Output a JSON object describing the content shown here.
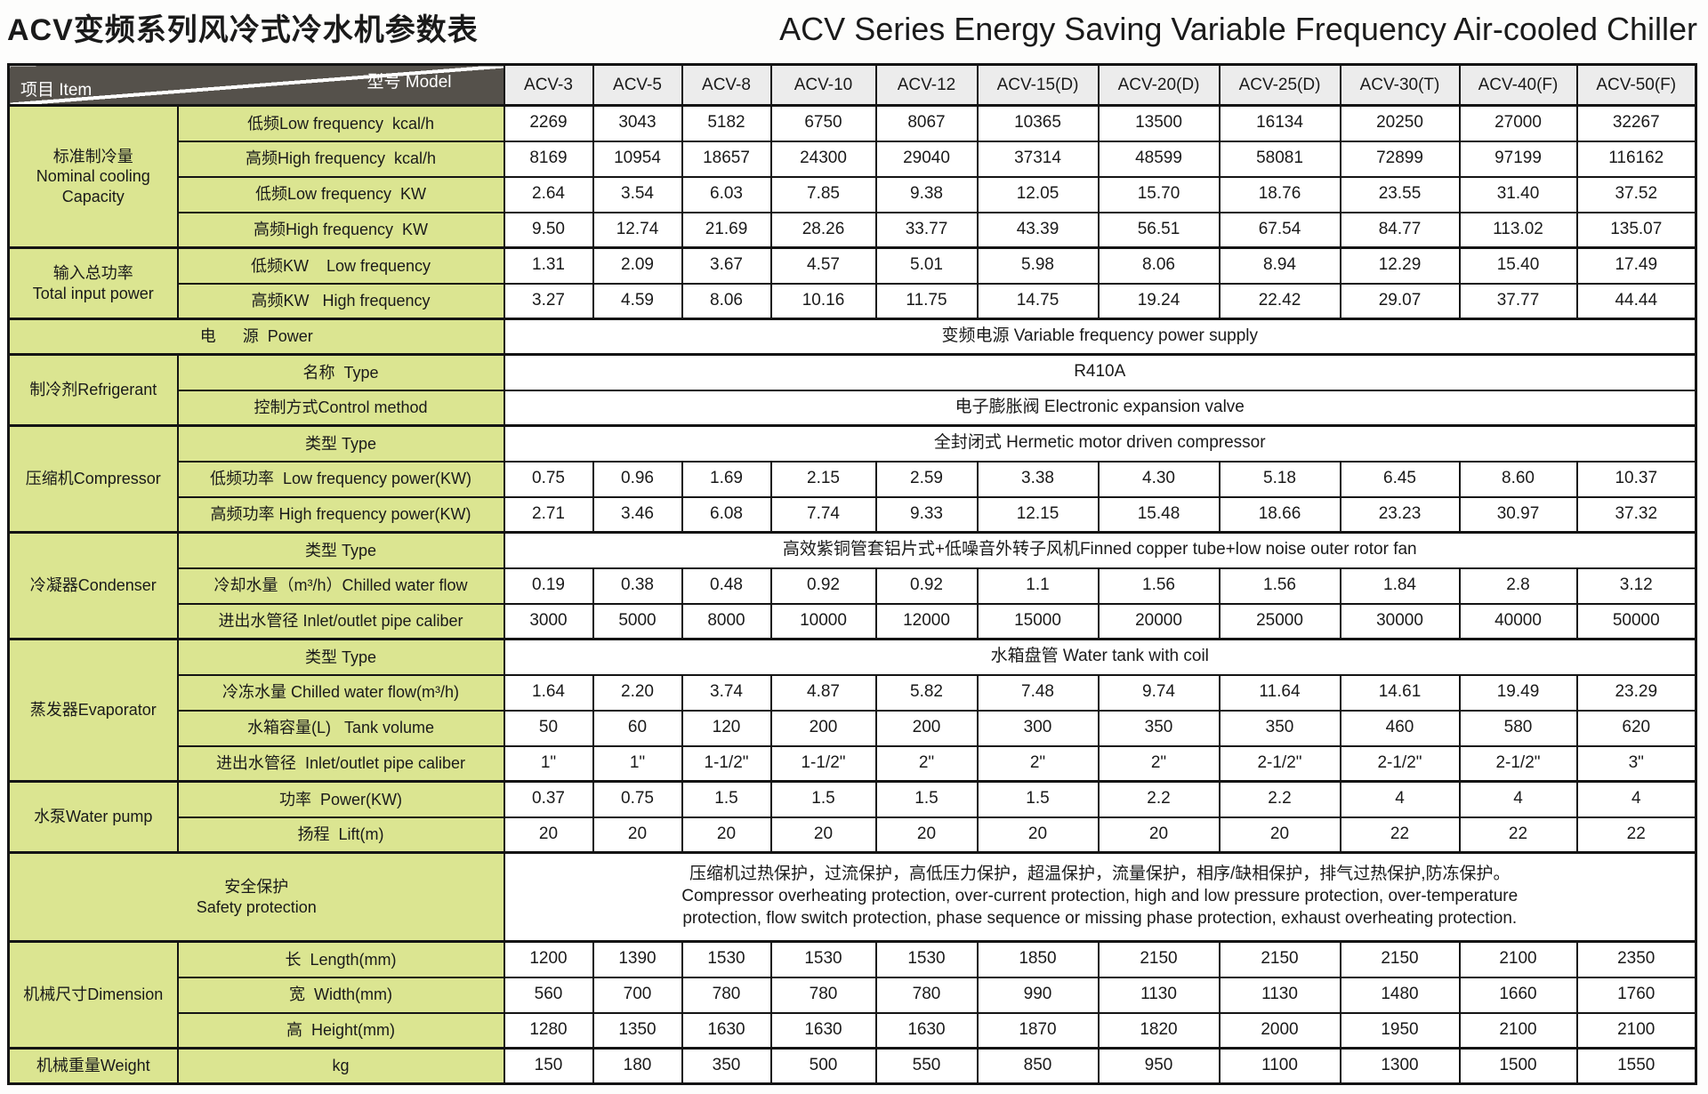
{
  "title": {
    "zh": "ACV变频系列风冷式冷水机参数表",
    "en": "ACV Series Energy Saving Variable Frequency Air-cooled Chiller"
  },
  "colors": {
    "label_bg": "#dbe591",
    "corner_bg": "#55514b",
    "model_header_bg": "#ececec",
    "border": "#141414"
  },
  "table": {
    "corner": {
      "model": "型号  Model",
      "item": "项目  Item"
    },
    "models": [
      "ACV-3",
      "ACV-5",
      "ACV-8",
      "ACV-10",
      "ACV-12",
      "ACV-15(D)",
      "ACV-20(D)",
      "ACV-25(D)",
      "ACV-30(T)",
      "ACV-40(F)",
      "ACV-50(F)"
    ],
    "rows": [
      {
        "group": "标准制冷量\nNominal cooling\nCapacity",
        "group_rowspan": 4,
        "label": "低频Low frequency  kcal/h",
        "values": [
          "2269",
          "3043",
          "5182",
          "6750",
          "8067",
          "10365",
          "13500",
          "16134",
          "20250",
          "27000",
          "32267"
        ]
      },
      {
        "label": "高频High frequency  kcal/h",
        "values": [
          "8169",
          "10954",
          "18657",
          "24300",
          "29040",
          "37314",
          "48599",
          "58081",
          "72899",
          "97199",
          "116162"
        ]
      },
      {
        "label": "低频Low frequency  KW",
        "values": [
          "2.64",
          "3.54",
          "6.03",
          "7.85",
          "9.38",
          "12.05",
          "15.70",
          "18.76",
          "23.55",
          "31.40",
          "37.52"
        ]
      },
      {
        "label": "高频High frequency  KW",
        "values": [
          "9.50",
          "12.74",
          "21.69",
          "28.26",
          "33.77",
          "43.39",
          "56.51",
          "67.54",
          "84.77",
          "113.02",
          "135.07"
        ]
      },
      {
        "section_start": true,
        "group": "输入总功率\nTotal input power",
        "group_rowspan": 2,
        "label": "低频KW    Low frequency",
        "values": [
          "1.31",
          "2.09",
          "3.67",
          "4.57",
          "5.01",
          "5.98",
          "8.06",
          "8.94",
          "12.29",
          "15.40",
          "17.49"
        ]
      },
      {
        "label": "高频KW   High frequency",
        "values": [
          "3.27",
          "4.59",
          "8.06",
          "10.16",
          "11.75",
          "14.75",
          "19.24",
          "22.42",
          "29.07",
          "37.77",
          "44.44"
        ]
      },
      {
        "section_start": true,
        "wide_label": "电      源  Power",
        "span_value": "变频电源 Variable frequency power supply"
      },
      {
        "section_start": true,
        "group": "制冷剂Refrigerant",
        "group_rowspan": 2,
        "label": "名称  Type",
        "span_value": "R410A"
      },
      {
        "label": "控制方式Control method",
        "span_value": "电子膨胀阀 Electronic expansion valve"
      },
      {
        "section_start": true,
        "group": "压缩机Compressor",
        "group_rowspan": 3,
        "label": "类型 Type",
        "span_value": "全封闭式 Hermetic motor driven compressor"
      },
      {
        "label": "低频功率  Low frequency power(KW)",
        "values": [
          "0.75",
          "0.96",
          "1.69",
          "2.15",
          "2.59",
          "3.38",
          "4.30",
          "5.18",
          "6.45",
          "8.60",
          "10.37"
        ]
      },
      {
        "label": "高频功率 High frequency power(KW)",
        "values": [
          "2.71",
          "3.46",
          "6.08",
          "7.74",
          "9.33",
          "12.15",
          "15.48",
          "18.66",
          "23.23",
          "30.97",
          "37.32"
        ]
      },
      {
        "section_start": true,
        "group": "冷凝器Condenser",
        "group_rowspan": 3,
        "label": "类型 Type",
        "span_value": "高效紫铜管套铝片式+低噪音外转子风机Finned copper tube+low noise outer rotor fan"
      },
      {
        "label": "冷却水量（m³/h）Chilled water flow",
        "values": [
          "0.19",
          "0.38",
          "0.48",
          "0.92",
          "0.92",
          "1.1",
          "1.56",
          "1.56",
          "1.84",
          "2.8",
          "3.12"
        ]
      },
      {
        "label": "进出水管径 Inlet/outlet pipe caliber",
        "values": [
          "3000",
          "5000",
          "8000",
          "10000",
          "12000",
          "15000",
          "20000",
          "25000",
          "30000",
          "40000",
          "50000"
        ]
      },
      {
        "section_start": true,
        "group": "蒸发器Evaporator",
        "group_rowspan": 4,
        "label": "类型 Type",
        "span_value": "水箱盘管 Water tank with coil"
      },
      {
        "label": "冷冻水量 Chilled water flow(m³/h)",
        "values": [
          "1.64",
          "2.20",
          "3.74",
          "4.87",
          "5.82",
          "7.48",
          "9.74",
          "11.64",
          "14.61",
          "19.49",
          "23.29"
        ]
      },
      {
        "label": "水箱容量(L)   Tank volume",
        "values": [
          "50",
          "60",
          "120",
          "200",
          "200",
          "300",
          "350",
          "350",
          "460",
          "580",
          "620"
        ]
      },
      {
        "label": "进出水管径  Inlet/outlet pipe caliber",
        "values": [
          "1\"",
          "1\"",
          "1-1/2\"",
          "1-1/2\"",
          "2\"",
          "2\"",
          "2\"",
          "2-1/2\"",
          "2-1/2\"",
          "2-1/2\"",
          "3\""
        ]
      },
      {
        "section_start": true,
        "group": "水泵Water pump",
        "group_rowspan": 2,
        "label": "功率  Power(KW)",
        "values": [
          "0.37",
          "0.75",
          "1.5",
          "1.5",
          "1.5",
          "1.5",
          "2.2",
          "2.2",
          "4",
          "4",
          "4"
        ]
      },
      {
        "label": "扬程  Lift(m)",
        "values": [
          "20",
          "20",
          "20",
          "20",
          "20",
          "20",
          "20",
          "20",
          "22",
          "22",
          "22"
        ]
      },
      {
        "section_start": true,
        "tall": true,
        "wide_label": "安全保护\nSafety protection",
        "span_value": "压缩机过热保护，过流保护，高低压力保护，超温保护，流量保护，相序/缺相保护，排气过热保护,防冻保护。\nCompressor overheating protection, over-current protection, high and low pressure protection, over-temperature\nprotection, flow switch protection, phase sequence or missing phase protection, exhaust overheating protection."
      },
      {
        "section_start": true,
        "group": "机械尺寸Dimension",
        "group_rowspan": 3,
        "label": "长  Length(mm)",
        "values": [
          "1200",
          "1390",
          "1530",
          "1530",
          "1530",
          "1850",
          "2150",
          "2150",
          "2150",
          "2100",
          "2350"
        ]
      },
      {
        "label": "宽  Width(mm)",
        "values": [
          "560",
          "700",
          "780",
          "780",
          "780",
          "990",
          "1130",
          "1130",
          "1480",
          "1660",
          "1760"
        ]
      },
      {
        "label": "高  Height(mm)",
        "values": [
          "1280",
          "1350",
          "1630",
          "1630",
          "1630",
          "1870",
          "1820",
          "2000",
          "1950",
          "2100",
          "2100"
        ]
      },
      {
        "section_start": true,
        "group": "机械重量Weight",
        "group_rowspan": 1,
        "label": "kg",
        "values": [
          "150",
          "180",
          "350",
          "500",
          "550",
          "850",
          "950",
          "1100",
          "1300",
          "1500",
          "1550"
        ]
      }
    ]
  }
}
